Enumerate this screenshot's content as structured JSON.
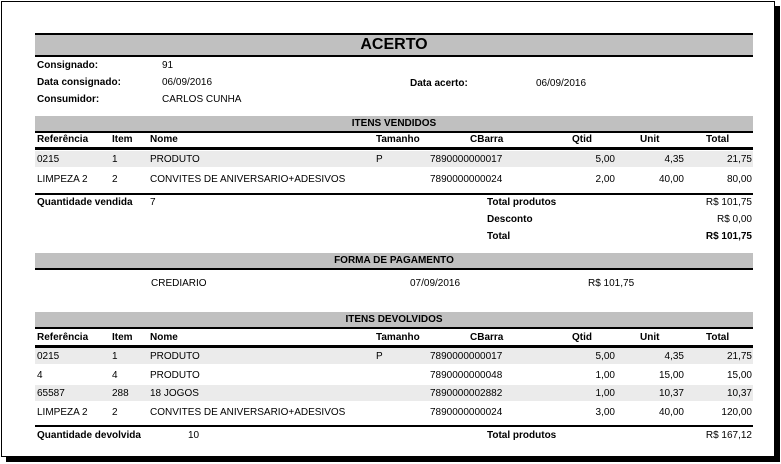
{
  "title": "ACERTO",
  "info": {
    "consignado_label": "Consignado:",
    "consignado": "91",
    "data_consignado_label": "Data consignado:",
    "data_consignado": "06/09/2016",
    "data_acerto_label": "Data acerto:",
    "data_acerto": "06/09/2016",
    "consumidor_label": "Consumidor:",
    "consumidor": "CARLOS CUNHA"
  },
  "columns": [
    "Referência",
    "Item",
    "Nome",
    "Tamanho",
    "CBarra",
    "Qtid",
    "Unit",
    "Total"
  ],
  "vendidos": {
    "title": "ITENS VENDIDOS",
    "rows": [
      [
        "0215",
        "1",
        "PRODUTO",
        "P",
        "7890000000017",
        "5,00",
        "4,35",
        "21,75"
      ],
      [
        "LIMPEZA 2",
        "2",
        "CONVITES DE ANIVERSARIO+ADESIVOS",
        "",
        "7890000000024",
        "2,00",
        "40,00",
        "80,00"
      ]
    ],
    "qtd_label": "Quantidade vendida",
    "qtd": "7",
    "total_produtos_label": "Total produtos",
    "total_produtos": "R$ 101,75",
    "desconto_label": "Desconto",
    "desconto": "R$ 0,00",
    "total_label": "Total",
    "total": "R$ 101,75"
  },
  "pagamento": {
    "title": "FORMA DE PAGAMENTO",
    "forma": "CREDIARIO",
    "data": "07/09/2016",
    "valor": "R$ 101,75"
  },
  "devolvidos": {
    "title": "ITENS DEVOLVIDOS",
    "rows": [
      [
        "0215",
        "1",
        "PRODUTO",
        "P",
        "7890000000017",
        "5,00",
        "4,35",
        "21,75"
      ],
      [
        "4",
        "4",
        "PRODUTO",
        "",
        "7890000000048",
        "1,00",
        "15,00",
        "15,00"
      ],
      [
        "65587",
        "288",
        "18 JOGOS",
        "",
        "7890000002882",
        "1,00",
        "10,37",
        "10,37"
      ],
      [
        "LIMPEZA 2",
        "2",
        "CONVITES DE ANIVERSARIO+ADESIVOS",
        "",
        "7890000000024",
        "3,00",
        "40,00",
        "120,00"
      ]
    ],
    "qtd_label": "Quantidade devolvida",
    "qtd": "10",
    "total_produtos_label": "Total produtos",
    "total_produtos": "R$ 167,12"
  }
}
